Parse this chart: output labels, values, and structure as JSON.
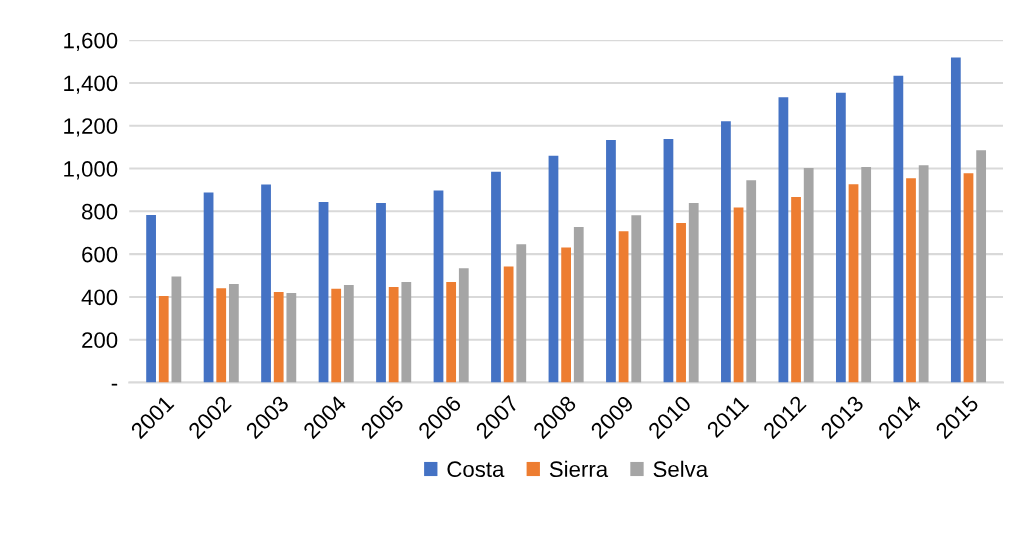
{
  "chart_data": {
    "type": "bar",
    "categories": [
      "2001",
      "2002",
      "2003",
      "2004",
      "2005",
      "2006",
      "2007",
      "2008",
      "2009",
      "2010",
      "2011",
      "2012",
      "2013",
      "2014",
      "2015"
    ],
    "series": [
      {
        "name": "Costa",
        "color": "#4472c4",
        "values": [
          783,
          888,
          925,
          844,
          839,
          897,
          985,
          1060,
          1133,
          1138,
          1221,
          1333,
          1354,
          1434,
          1519
        ]
      },
      {
        "name": "Sierra",
        "color": "#ed7d31",
        "values": [
          404,
          441,
          423,
          438,
          446,
          470,
          542,
          631,
          707,
          745,
          818,
          867,
          927,
          954,
          978
        ]
      },
      {
        "name": "Selva",
        "color": "#a5a5a5",
        "values": [
          496,
          460,
          418,
          456,
          470,
          534,
          646,
          727,
          782,
          839,
          945,
          1002,
          1007,
          1015,
          1085
        ]
      }
    ],
    "ylim": [
      0,
      1600
    ],
    "yticks": [
      {
        "value": 0,
        "label": "-"
      },
      {
        "value": 200,
        "label": "200"
      },
      {
        "value": 400,
        "label": "400"
      },
      {
        "value": 600,
        "label": "600"
      },
      {
        "value": 800,
        "label": "800"
      },
      {
        "value": 1000,
        "label": "1,000"
      },
      {
        "value": 1200,
        "label": "1,200"
      },
      {
        "value": 1400,
        "label": "1,400"
      },
      {
        "value": 1600,
        "label": "1,600"
      }
    ],
    "grid": "y",
    "legend": "bottom"
  }
}
